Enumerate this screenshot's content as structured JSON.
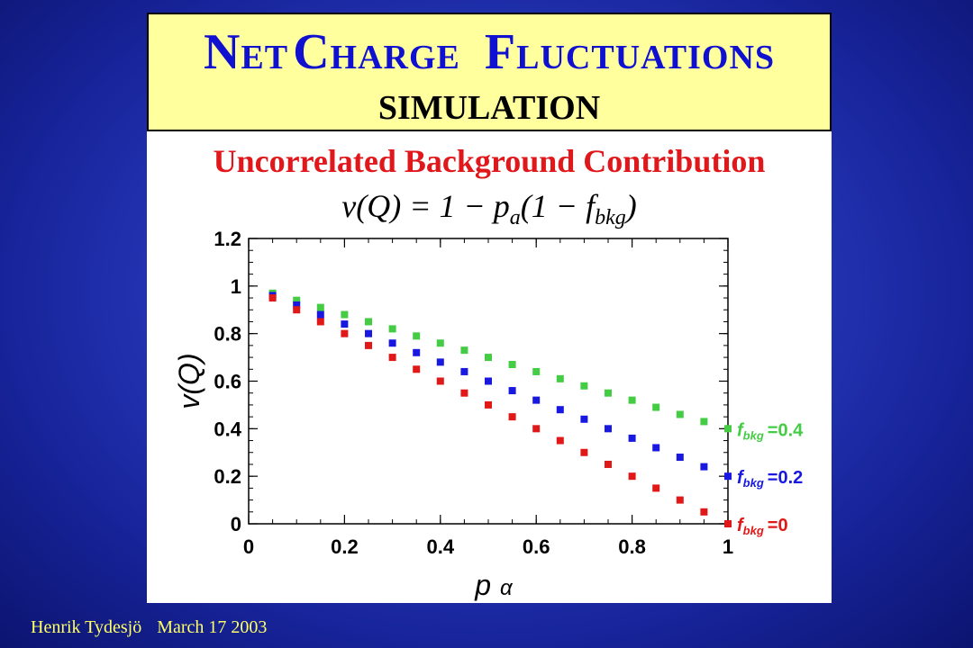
{
  "title": {
    "n": "N",
    "et": "ET",
    "c": "C",
    "harge": "HARGE",
    "f": "F",
    "luctuations": "LUCTUATIONS",
    "subtitle": "SIMULATION"
  },
  "section_title": "Uncorrelated Background Contribution",
  "formula": "v(Q) = 1 − p_a(1 − f_bkg)",
  "footer": {
    "author": "Henrik Tydesjö",
    "date": "March 17 2003"
  },
  "colors": {
    "green": "#44cc44",
    "blue": "#1818e0",
    "red": "#e01818",
    "title_box": "#ffff9e",
    "title_text": "#1010d0"
  },
  "chart_data": {
    "type": "scatter",
    "xlabel": "p α",
    "ylabel": "v(Q)",
    "xlim": [
      0,
      1
    ],
    "ylim": [
      0,
      1.2
    ],
    "xticks": [
      "0",
      "0.2",
      "0.4",
      "0.6",
      "0.8",
      "1"
    ],
    "yticks": [
      "0",
      "0.2",
      "0.4",
      "0.6",
      "0.8",
      "1",
      "1.2"
    ],
    "x": [
      0.05,
      0.1,
      0.15,
      0.2,
      0.25,
      0.3,
      0.35,
      0.4,
      0.45,
      0.5,
      0.55,
      0.6,
      0.65,
      0.7,
      0.75,
      0.8,
      0.85,
      0.9,
      0.95,
      1.0
    ],
    "series": [
      {
        "name": "f bkg =0.4",
        "color": "#44cc44",
        "values": [
          0.97,
          0.94,
          0.91,
          0.88,
          0.85,
          0.82,
          0.79,
          0.76,
          0.73,
          0.7,
          0.67,
          0.64,
          0.61,
          0.58,
          0.55,
          0.52,
          0.49,
          0.46,
          0.43,
          0.4
        ]
      },
      {
        "name": "f bkg =0.2",
        "color": "#1818e0",
        "values": [
          0.96,
          0.92,
          0.88,
          0.84,
          0.8,
          0.76,
          0.72,
          0.68,
          0.64,
          0.6,
          0.56,
          0.52,
          0.48,
          0.44,
          0.4,
          0.36,
          0.32,
          0.28,
          0.24,
          0.2
        ]
      },
      {
        "name": "f bkg =0",
        "color": "#e01818",
        "values": [
          0.95,
          0.9,
          0.85,
          0.8,
          0.75,
          0.7,
          0.65,
          0.6,
          0.55,
          0.5,
          0.45,
          0.4,
          0.35,
          0.3,
          0.25,
          0.2,
          0.15,
          0.1,
          0.05,
          0.0
        ]
      }
    ],
    "legend": [
      {
        "f": "f",
        "sub": "bkg",
        "val": "=0.4",
        "color": "#44cc44"
      },
      {
        "f": "f",
        "sub": "bkg",
        "val": "=0.2",
        "color": "#1818e0"
      },
      {
        "f": "f",
        "sub": "bkg",
        "val": "=0",
        "color": "#e01818"
      }
    ],
    "grid": false
  }
}
